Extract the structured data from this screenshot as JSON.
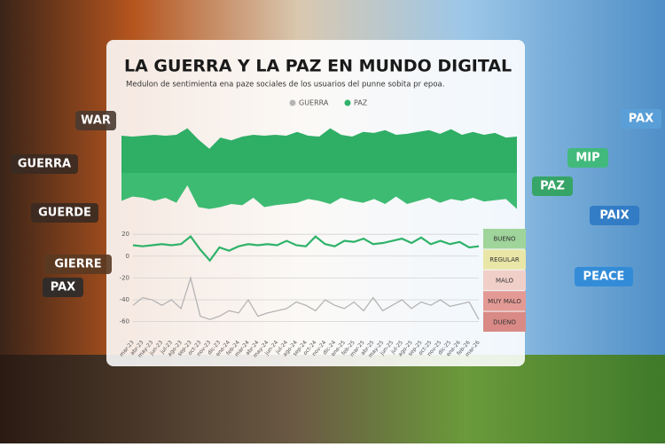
{
  "chart_data": {
    "type": "line",
    "title": "LA GUERRA Y LA PAZ EN MUNDO DIGITAL",
    "subtitle": "Medulon de sentimienta ena paze sociales de los usuarios del punne sobita pr epoa.",
    "categories": [
      "mar-23",
      "abr-23",
      "may-23",
      "jun-23",
      "jul-23",
      "ago-23",
      "sep-23",
      "oct-23",
      "nov-23",
      "dic-23",
      "ene-24",
      "feb-24",
      "mar-24",
      "abr-24",
      "may-24",
      "jun-24",
      "jul-24",
      "ago-24",
      "sep-24",
      "oct-24",
      "nov-24",
      "dic-24",
      "ene-25",
      "feb-25",
      "mar-25",
      "abr-25",
      "may-25",
      "jun-25",
      "jul-25",
      "ago-25",
      "sep-25",
      "oct-25",
      "nov-25",
      "dic-25",
      "ene-26",
      "feb-26",
      "mar-26"
    ],
    "series": [
      {
        "name": "GUERRA",
        "color": "#b5b5b5",
        "values": [
          -45,
          -38,
          -40,
          -45,
          -40,
          -48,
          -20,
          -55,
          -58,
          -55,
          -50,
          -52,
          -40,
          -55,
          -52,
          -50,
          -48,
          -42,
          -45,
          -50,
          -40,
          -45,
          -48,
          -42,
          -50,
          -38,
          -50,
          -45,
          -40,
          -48,
          -42,
          -45,
          -40,
          -46,
          -44,
          -42,
          -58
        ]
      },
      {
        "name": "PAZ",
        "color": "#2fb36a",
        "values": [
          10,
          9,
          10,
          11,
          10,
          11,
          18,
          6,
          -4,
          8,
          5,
          9,
          11,
          10,
          11,
          10,
          14,
          10,
          9,
          18,
          11,
          9,
          14,
          13,
          16,
          11,
          12,
          14,
          16,
          12,
          17,
          11,
          14,
          11,
          13,
          8,
          9
        ]
      }
    ],
    "ylim": [
      -70,
      25
    ],
    "yticks": [
      20,
      0,
      -20,
      -40,
      -60
    ],
    "grid": true,
    "bands": [
      {
        "label": "BUENO",
        "color": "#9fd49a"
      },
      {
        "label": "REGULAR",
        "color": "#e9e6a8"
      },
      {
        "label": "MALO",
        "color": "#f1cfc9"
      },
      {
        "label": "MUY MALO",
        "color": "#e49a94"
      },
      {
        "label": "DUENO",
        "color": "#d98a86"
      }
    ]
  },
  "badges": [
    "WAR",
    "GUERRA",
    "GUERDE",
    "GIERRE",
    "PAX",
    "PAX",
    "MIP",
    "PAZ",
    "PAIX",
    "PEACE"
  ]
}
